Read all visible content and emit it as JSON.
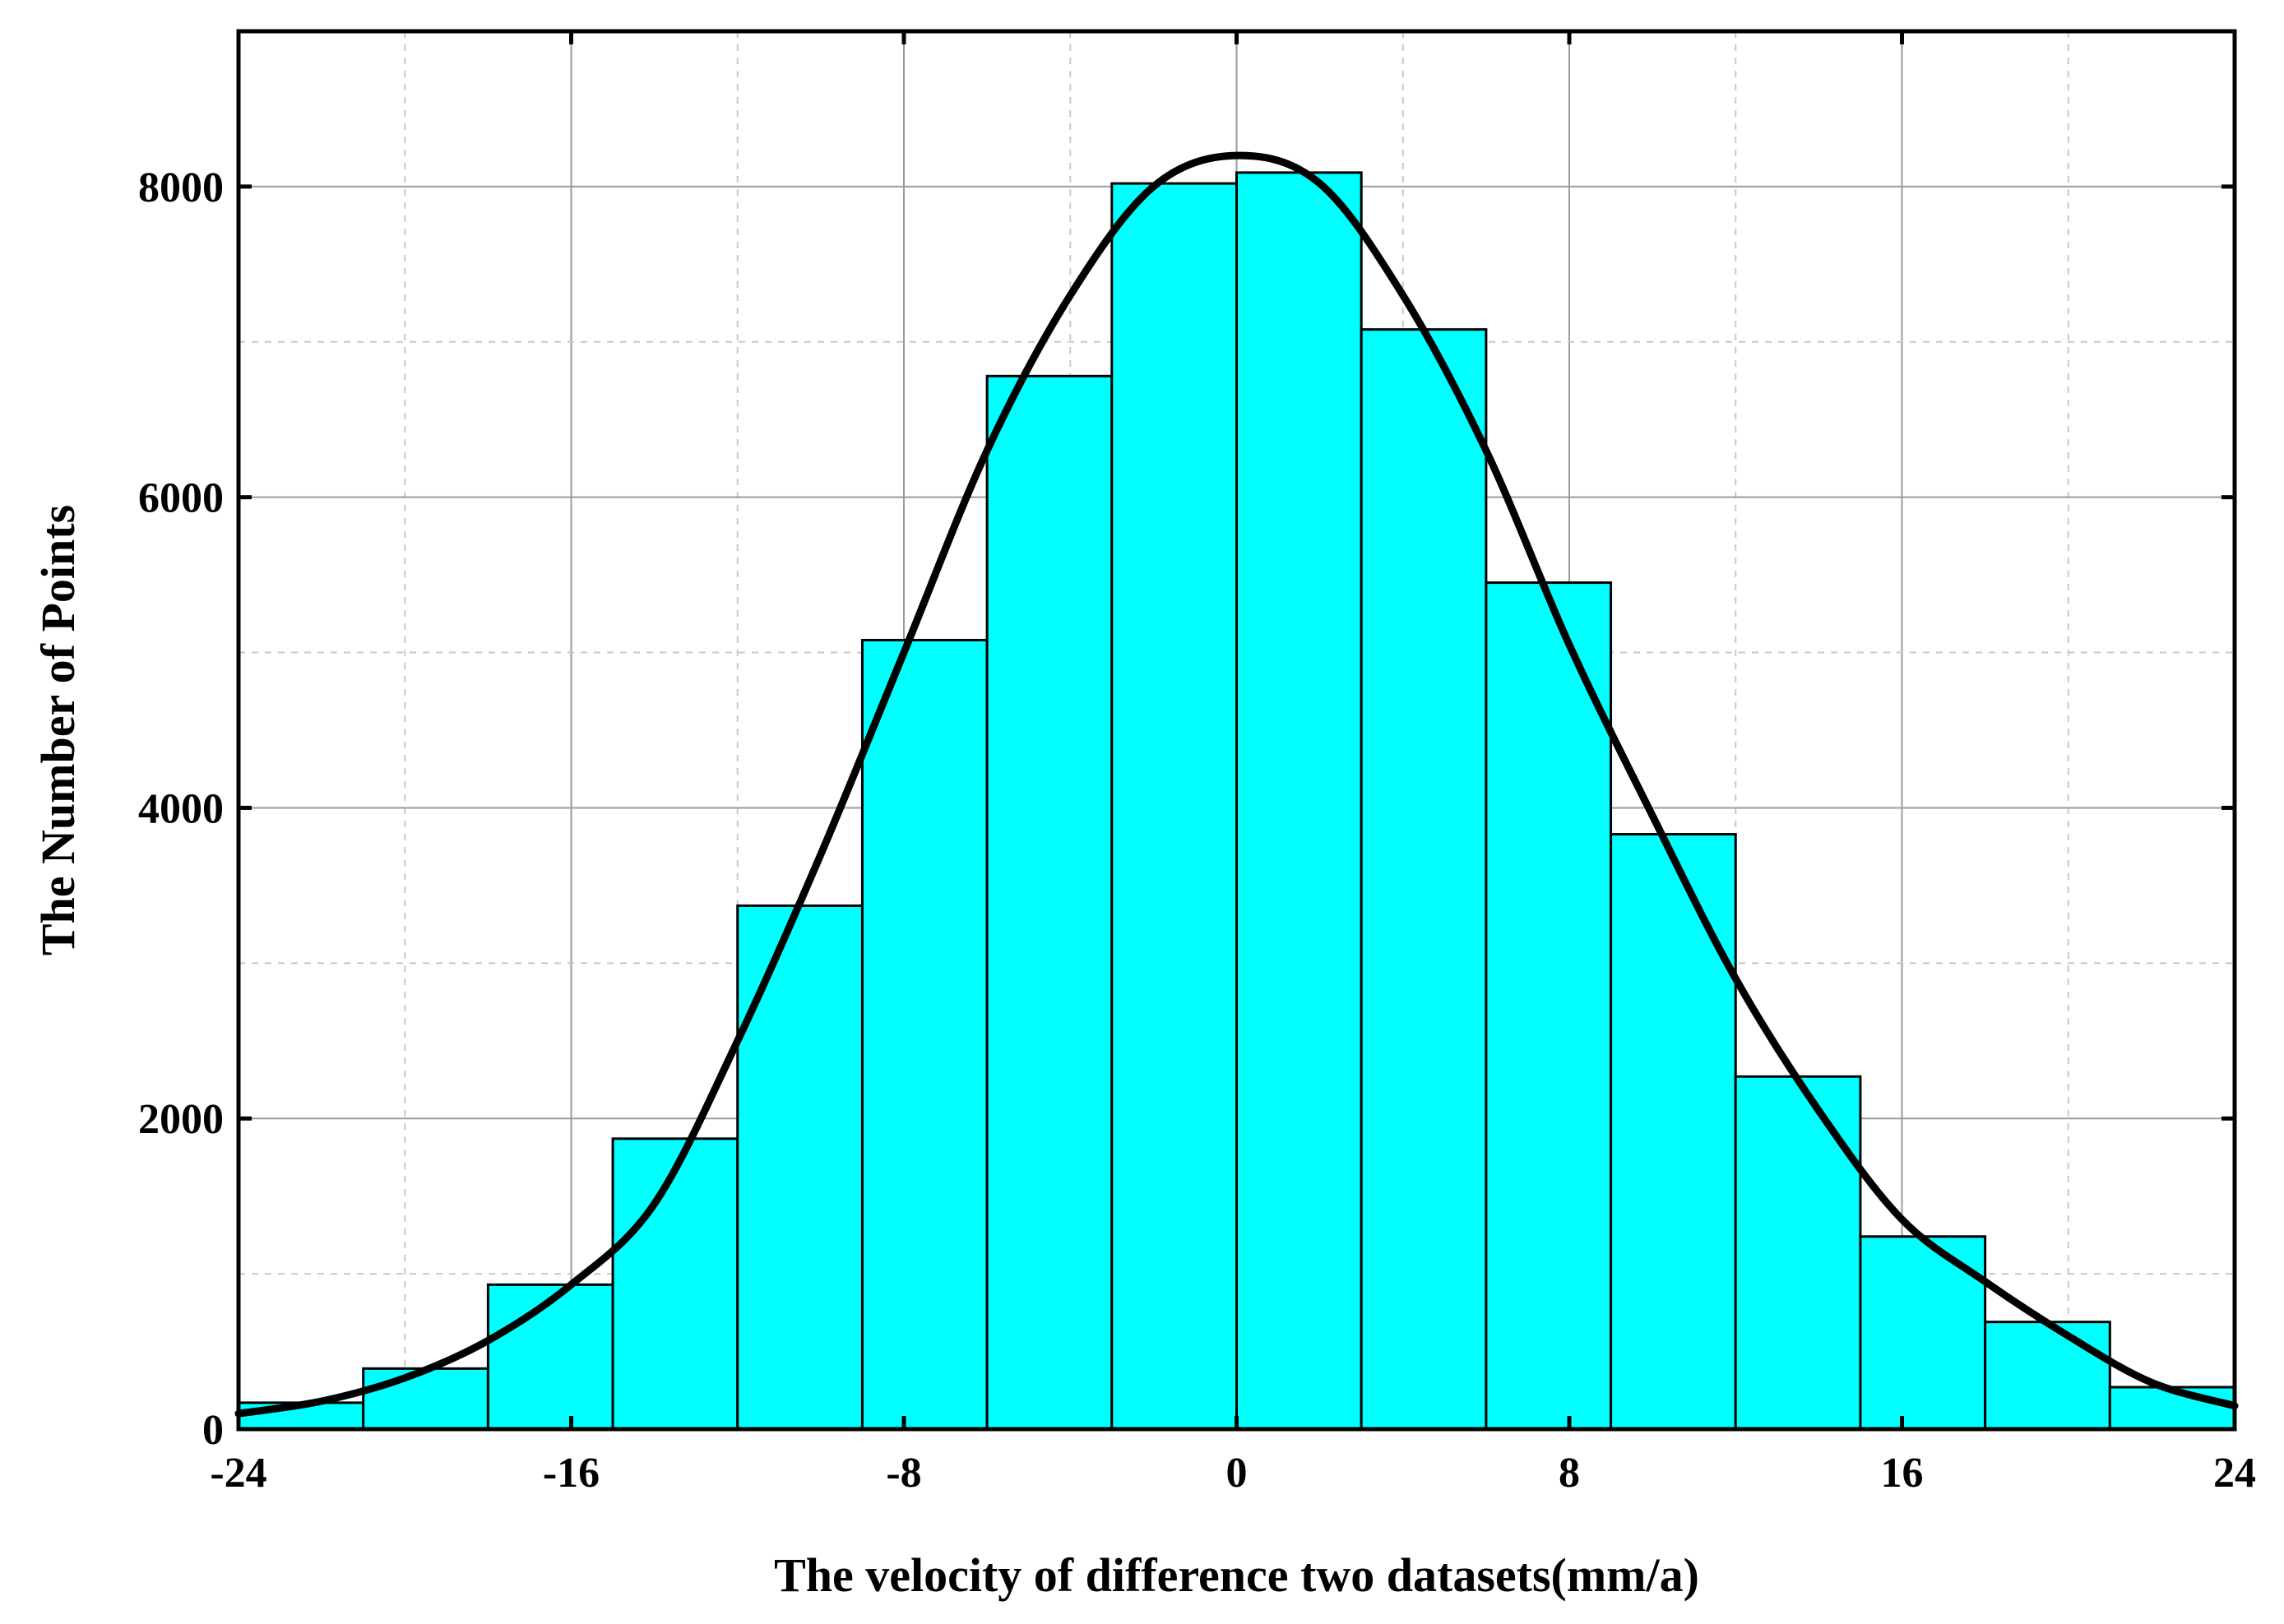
{
  "chart_data": {
    "type": "bar",
    "title": "",
    "xlabel": "The velocity of difference two datasets(mm/a)",
    "ylabel": "The Number of Points",
    "xlim": [
      -24,
      24
    ],
    "ylim": [
      0,
      9000
    ],
    "x_ticks": [
      -24,
      -16,
      -8,
      0,
      8,
      16,
      24
    ],
    "y_ticks": [
      0,
      2000,
      4000,
      6000,
      8000
    ],
    "grid": true,
    "bar_color": "#00FFFF",
    "bins": [
      {
        "x0": -24,
        "x1": -21,
        "value": 170
      },
      {
        "x0": -21,
        "x1": -18,
        "value": 390
      },
      {
        "x0": -18,
        "x1": -15,
        "value": 930
      },
      {
        "x0": -15,
        "x1": -12,
        "value": 1870
      },
      {
        "x0": -12,
        "x1": -9,
        "value": 3370
      },
      {
        "x0": -9,
        "x1": -6,
        "value": 5080
      },
      {
        "x0": -6,
        "x1": -3,
        "value": 6780
      },
      {
        "x0": -3,
        "x1": 0,
        "value": 8020
      },
      {
        "x0": 0,
        "x1": 3,
        "value": 8090
      },
      {
        "x0": 3,
        "x1": 6,
        "value": 7080
      },
      {
        "x0": 6,
        "x1": 9,
        "value": 5450
      },
      {
        "x0": 9,
        "x1": 12,
        "value": 3830
      },
      {
        "x0": 12,
        "x1": 15,
        "value": 2270
      },
      {
        "x0": 15,
        "x1": 18,
        "value": 1240
      },
      {
        "x0": 18,
        "x1": 21,
        "value": 690
      },
      {
        "x0": 21,
        "x1": 24,
        "value": 270
      }
    ],
    "fit_curve": {
      "x": [
        -24,
        -22,
        -20,
        -18,
        -16,
        -14,
        -12,
        -10,
        -8,
        -6,
        -4,
        -2,
        0,
        2,
        4,
        6,
        8,
        10,
        12,
        14,
        16,
        18,
        20,
        22,
        24
      ],
      "y": [
        100,
        180,
        330,
        570,
        930,
        1450,
        2500,
        3700,
        5000,
        6300,
        7300,
        8000,
        8200,
        8020,
        7300,
        6300,
        5050,
        3950,
        2900,
        2050,
        1350,
        950,
        600,
        300,
        150
      ]
    }
  }
}
